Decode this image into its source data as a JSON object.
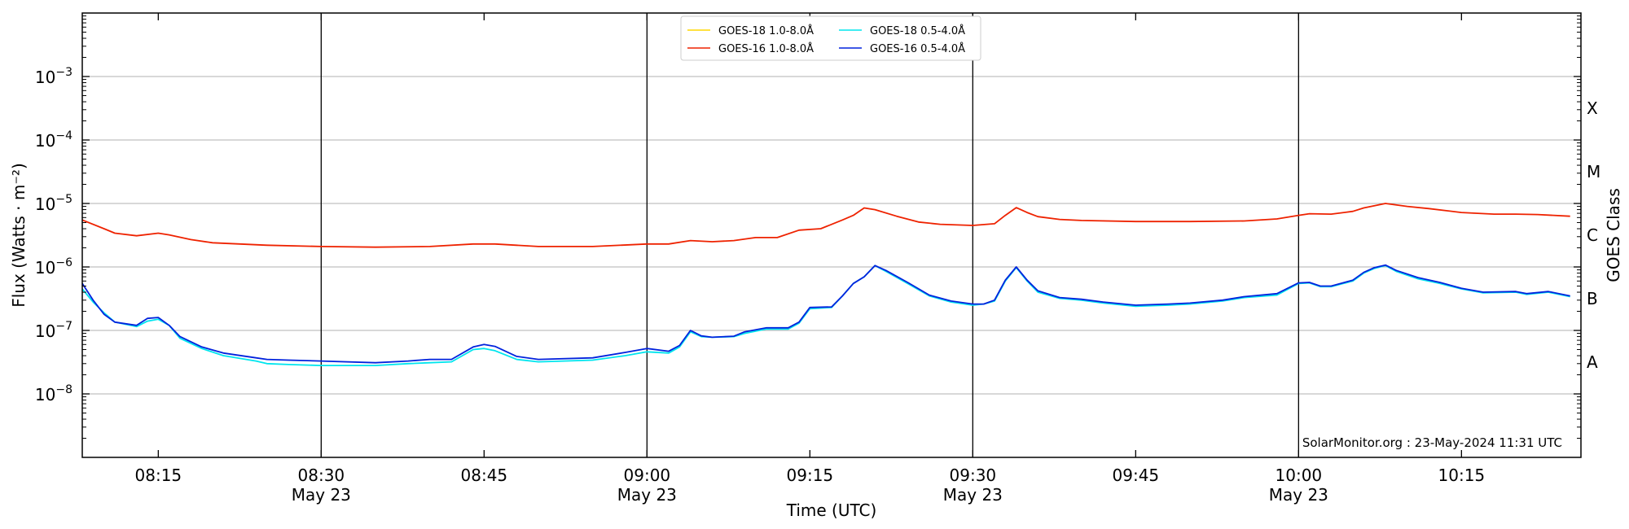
{
  "chart_data": {
    "type": "line",
    "xlabel": "Time (UTC)",
    "ylabel": "Flux (Watts · m⁻²)",
    "ylabel_right": "GOES Class",
    "x_range": [
      "08:08",
      "10:26"
    ],
    "ylim": [
      1e-09,
      0.01
    ],
    "yscale": "log",
    "grid": true,
    "legend_position": "top-center",
    "x_ticks": [
      {
        "time": "08:15",
        "label": "08:15",
        "sub": ""
      },
      {
        "time": "08:30",
        "label": "08:30",
        "sub": "May 23"
      },
      {
        "time": "08:45",
        "label": "08:45",
        "sub": ""
      },
      {
        "time": "09:00",
        "label": "09:00",
        "sub": "May 23"
      },
      {
        "time": "09:15",
        "label": "09:15",
        "sub": ""
      },
      {
        "time": "09:30",
        "label": "09:30",
        "sub": "May 23"
      },
      {
        "time": "09:45",
        "label": "09:45",
        "sub": ""
      },
      {
        "time": "10:00",
        "label": "10:00",
        "sub": "May 23"
      },
      {
        "time": "10:15",
        "label": "10:15",
        "sub": ""
      }
    ],
    "vertical_lines": [
      "08:30",
      "09:00",
      "09:30",
      "10:00"
    ],
    "y_ticks": [
      {
        "value": 1e-08,
        "base": "10",
        "exp": "−8"
      },
      {
        "value": 1e-07,
        "base": "10",
        "exp": "−7"
      },
      {
        "value": 1e-06,
        "base": "10",
        "exp": "−6"
      },
      {
        "value": 1e-05,
        "base": "10",
        "exp": "−5"
      },
      {
        "value": 0.0001,
        "base": "10",
        "exp": "−4"
      },
      {
        "value": 0.001,
        "base": "10",
        "exp": "−3"
      }
    ],
    "class_labels": [
      {
        "label": "A",
        "value": 3.162e-08
      },
      {
        "label": "B",
        "value": 3.162e-07
      },
      {
        "label": "C",
        "value": 3.162e-06
      },
      {
        "label": "M",
        "value": 3.162e-05
      },
      {
        "label": "X",
        "value": 0.0003162
      }
    ],
    "annotation": "SolarMonitor.org : 23-May-2024 11:31 UTC",
    "series": [
      {
        "name": "GOES-18 1.0-8.0Å",
        "color": "#ffd700",
        "points": []
      },
      {
        "name": "GOES-16 1.0-8.0Å",
        "color": "#ee2200",
        "points": [
          [
            "08:08",
            5.5e-06
          ],
          [
            "08:10",
            4e-06
          ],
          [
            "08:11",
            3.4e-06
          ],
          [
            "08:13",
            3.1e-06
          ],
          [
            "08:15",
            3.4e-06
          ],
          [
            "08:16",
            3.2e-06
          ],
          [
            "08:18",
            2.7e-06
          ],
          [
            "08:20",
            2.4e-06
          ],
          [
            "08:25",
            2.2e-06
          ],
          [
            "08:30",
            2.1e-06
          ],
          [
            "08:35",
            2.05e-06
          ],
          [
            "08:40",
            2.1e-06
          ],
          [
            "08:44",
            2.3e-06
          ],
          [
            "08:46",
            2.3e-06
          ],
          [
            "08:50",
            2.1e-06
          ],
          [
            "08:55",
            2.1e-06
          ],
          [
            "09:00",
            2.3e-06
          ],
          [
            "09:02",
            2.3e-06
          ],
          [
            "09:04",
            2.6e-06
          ],
          [
            "09:06",
            2.5e-06
          ],
          [
            "09:08",
            2.6e-06
          ],
          [
            "09:10",
            2.9e-06
          ],
          [
            "09:12",
            2.9e-06
          ],
          [
            "09:14",
            3.8e-06
          ],
          [
            "09:16",
            4e-06
          ],
          [
            "09:18",
            5.5e-06
          ],
          [
            "09:19",
            6.5e-06
          ],
          [
            "09:20",
            8.5e-06
          ],
          [
            "09:21",
            8e-06
          ],
          [
            "09:23",
            6.3e-06
          ],
          [
            "09:25",
            5.1e-06
          ],
          [
            "09:27",
            4.7e-06
          ],
          [
            "09:30",
            4.5e-06
          ],
          [
            "09:32",
            4.8e-06
          ],
          [
            "09:33",
            6.5e-06
          ],
          [
            "09:34",
            8.6e-06
          ],
          [
            "09:35",
            7.2e-06
          ],
          [
            "09:36",
            6.2e-06
          ],
          [
            "09:38",
            5.6e-06
          ],
          [
            "09:40",
            5.4e-06
          ],
          [
            "09:45",
            5.2e-06
          ],
          [
            "09:50",
            5.2e-06
          ],
          [
            "09:55",
            5.3e-06
          ],
          [
            "09:58",
            5.7e-06
          ],
          [
            "10:00",
            6.5e-06
          ],
          [
            "10:01",
            6.9e-06
          ],
          [
            "10:03",
            6.8e-06
          ],
          [
            "10:05",
            7.5e-06
          ],
          [
            "10:06",
            8.5e-06
          ],
          [
            "10:08",
            1e-05
          ],
          [
            "10:10",
            9e-06
          ],
          [
            "10:12",
            8.3e-06
          ],
          [
            "10:15",
            7.2e-06
          ],
          [
            "10:18",
            6.8e-06
          ],
          [
            "10:20",
            6.8e-06
          ],
          [
            "10:22",
            6.7e-06
          ],
          [
            "10:25",
            6.3e-06
          ]
        ]
      },
      {
        "name": "GOES-18 0.5-4.0Å",
        "color": "#00e5ee",
        "points": [
          [
            "08:08",
            4.5e-07
          ],
          [
            "08:09",
            2.8e-07
          ],
          [
            "08:10",
            1.9e-07
          ],
          [
            "08:11",
            1.35e-07
          ],
          [
            "08:13",
            1.15e-07
          ],
          [
            "08:14",
            1.4e-07
          ],
          [
            "08:15",
            1.5e-07
          ],
          [
            "08:16",
            1.2e-07
          ],
          [
            "08:17",
            7.5e-08
          ],
          [
            "08:19",
            5.2e-08
          ],
          [
            "08:21",
            4e-08
          ],
          [
            "08:24",
            3.3e-08
          ],
          [
            "08:25",
            3e-08
          ],
          [
            "08:27",
            2.9e-08
          ],
          [
            "08:30",
            2.8e-08
          ],
          [
            "08:35",
            2.8e-08
          ],
          [
            "08:38",
            3e-08
          ],
          [
            "08:40",
            3.1e-08
          ],
          [
            "08:42",
            3.2e-08
          ],
          [
            "08:44",
            5e-08
          ],
          [
            "08:45",
            5.2e-08
          ],
          [
            "08:46",
            4.8e-08
          ],
          [
            "08:48",
            3.5e-08
          ],
          [
            "08:50",
            3.2e-08
          ],
          [
            "08:55",
            3.4e-08
          ],
          [
            "08:58",
            4e-08
          ],
          [
            "09:00",
            4.6e-08
          ],
          [
            "09:02",
            4.4e-08
          ],
          [
            "09:03",
            5.5e-08
          ],
          [
            "09:04",
            9.5e-08
          ],
          [
            "09:05",
            8e-08
          ],
          [
            "09:06",
            7.8e-08
          ],
          [
            "09:08",
            8e-08
          ],
          [
            "09:09",
            9e-08
          ],
          [
            "09:11",
            1.05e-07
          ],
          [
            "09:13",
            1.05e-07
          ],
          [
            "09:14",
            1.3e-07
          ],
          [
            "09:15",
            2.2e-07
          ],
          [
            "09:17",
            2.3e-07
          ],
          [
            "09:18",
            3.5e-07
          ],
          [
            "09:19",
            5.5e-07
          ],
          [
            "09:20",
            7e-07
          ],
          [
            "09:21",
            1.05e-06
          ],
          [
            "09:22",
            8.5e-07
          ],
          [
            "09:24",
            5.5e-07
          ],
          [
            "09:26",
            3.5e-07
          ],
          [
            "09:28",
            2.8e-07
          ],
          [
            "09:30",
            2.5e-07
          ],
          [
            "09:31",
            2.6e-07
          ],
          [
            "09:32",
            2.9e-07
          ],
          [
            "09:33",
            6e-07
          ],
          [
            "09:34",
            9.8e-07
          ],
          [
            "09:35",
            6e-07
          ],
          [
            "09:36",
            4e-07
          ],
          [
            "09:38",
            3.2e-07
          ],
          [
            "09:40",
            3e-07
          ],
          [
            "09:42",
            2.7e-07
          ],
          [
            "09:45",
            2.4e-07
          ],
          [
            "09:48",
            2.5e-07
          ],
          [
            "09:50",
            2.6e-07
          ],
          [
            "09:53",
            2.9e-07
          ],
          [
            "09:55",
            3.3e-07
          ],
          [
            "09:58",
            3.6e-07
          ],
          [
            "10:00",
            5.5e-07
          ],
          [
            "10:01",
            5.6e-07
          ],
          [
            "10:02",
            4.9e-07
          ],
          [
            "10:03",
            4.9e-07
          ],
          [
            "10:05",
            6e-07
          ],
          [
            "10:06",
            8e-07
          ],
          [
            "10:07",
            9.5e-07
          ],
          [
            "10:08",
            1.05e-06
          ],
          [
            "10:09",
            8.5e-07
          ],
          [
            "10:11",
            6.5e-07
          ],
          [
            "10:13",
            5.5e-07
          ],
          [
            "10:15",
            4.5e-07
          ],
          [
            "10:17",
            3.9e-07
          ],
          [
            "10:20",
            4e-07
          ],
          [
            "10:21",
            3.7e-07
          ],
          [
            "10:23",
            4e-07
          ],
          [
            "10:25",
            3.4e-07
          ]
        ]
      },
      {
        "name": "GOES-16 0.5-4.0Å",
        "color": "#0022dd",
        "points": [
          [
            "08:08",
            5.5e-07
          ],
          [
            "08:09",
            3e-07
          ],
          [
            "08:10",
            1.8e-07
          ],
          [
            "08:11",
            1.35e-07
          ],
          [
            "08:13",
            1.2e-07
          ],
          [
            "08:14",
            1.55e-07
          ],
          [
            "08:15",
            1.6e-07
          ],
          [
            "08:16",
            1.2e-07
          ],
          [
            "08:17",
            8e-08
          ],
          [
            "08:19",
            5.5e-08
          ],
          [
            "08:21",
            4.4e-08
          ],
          [
            "08:24",
            3.7e-08
          ],
          [
            "08:25",
            3.5e-08
          ],
          [
            "08:27",
            3.4e-08
          ],
          [
            "08:30",
            3.3e-08
          ],
          [
            "08:35",
            3.1e-08
          ],
          [
            "08:38",
            3.3e-08
          ],
          [
            "08:40",
            3.5e-08
          ],
          [
            "08:42",
            3.5e-08
          ],
          [
            "08:44",
            5.5e-08
          ],
          [
            "08:45",
            6e-08
          ],
          [
            "08:46",
            5.6e-08
          ],
          [
            "08:48",
            3.9e-08
          ],
          [
            "08:50",
            3.5e-08
          ],
          [
            "08:55",
            3.7e-08
          ],
          [
            "08:58",
            4.5e-08
          ],
          [
            "09:00",
            5.2e-08
          ],
          [
            "09:02",
            4.7e-08
          ],
          [
            "09:03",
            5.8e-08
          ],
          [
            "09:04",
            1e-07
          ],
          [
            "09:05",
            8.2e-08
          ],
          [
            "09:06",
            7.8e-08
          ],
          [
            "09:08",
            8.1e-08
          ],
          [
            "09:09",
            9.5e-08
          ],
          [
            "09:11",
            1.1e-07
          ],
          [
            "09:13",
            1.1e-07
          ],
          [
            "09:14",
            1.35e-07
          ],
          [
            "09:15",
            2.3e-07
          ],
          [
            "09:17",
            2.35e-07
          ],
          [
            "09:18",
            3.5e-07
          ],
          [
            "09:19",
            5.5e-07
          ],
          [
            "09:20",
            7e-07
          ],
          [
            "09:21",
            1.05e-06
          ],
          [
            "09:22",
            8.8e-07
          ],
          [
            "09:24",
            5.7e-07
          ],
          [
            "09:26",
            3.6e-07
          ],
          [
            "09:28",
            2.9e-07
          ],
          [
            "09:30",
            2.6e-07
          ],
          [
            "09:31",
            2.6e-07
          ],
          [
            "09:32",
            3e-07
          ],
          [
            "09:33",
            6.2e-07
          ],
          [
            "09:34",
            1e-06
          ],
          [
            "09:35",
            6.2e-07
          ],
          [
            "09:36",
            4.2e-07
          ],
          [
            "09:38",
            3.3e-07
          ],
          [
            "09:40",
            3.1e-07
          ],
          [
            "09:42",
            2.8e-07
          ],
          [
            "09:45",
            2.5e-07
          ],
          [
            "09:48",
            2.6e-07
          ],
          [
            "09:50",
            2.7e-07
          ],
          [
            "09:53",
            3e-07
          ],
          [
            "09:55",
            3.4e-07
          ],
          [
            "09:58",
            3.8e-07
          ],
          [
            "10:00",
            5.6e-07
          ],
          [
            "10:01",
            5.7e-07
          ],
          [
            "10:02",
            5e-07
          ],
          [
            "10:03",
            5e-07
          ],
          [
            "10:05",
            6.2e-07
          ],
          [
            "10:06",
            8.2e-07
          ],
          [
            "10:07",
            9.8e-07
          ],
          [
            "10:08",
            1.07e-06
          ],
          [
            "10:09",
            8.8e-07
          ],
          [
            "10:11",
            6.8e-07
          ],
          [
            "10:13",
            5.7e-07
          ],
          [
            "10:15",
            4.6e-07
          ],
          [
            "10:17",
            4e-07
          ],
          [
            "10:20",
            4.1e-07
          ],
          [
            "10:21",
            3.8e-07
          ],
          [
            "10:23",
            4.1e-07
          ],
          [
            "10:25",
            3.5e-07
          ]
        ]
      }
    ]
  }
}
